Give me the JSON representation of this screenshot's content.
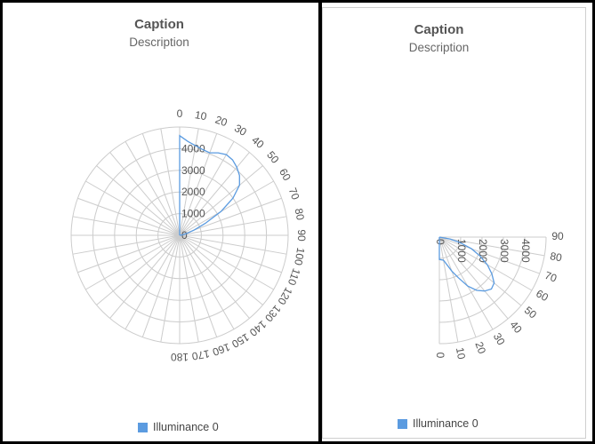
{
  "charts": [
    {
      "caption": "Caption",
      "description": "Description",
      "legend": "Illuminance 0"
    },
    {
      "caption": "Caption",
      "description": "Description",
      "legend": "Illuminance 0"
    }
  ],
  "colors": {
    "series": "#5b9be0",
    "grid": "#cccccc",
    "legend_swatch": "#5b9be0"
  },
  "chart_data": [
    {
      "type": "polar-line",
      "title": "Caption",
      "subtitle": "Description",
      "angle_ticks": [
        0,
        10,
        20,
        30,
        40,
        50,
        60,
        70,
        80,
        90,
        100,
        110,
        120,
        130,
        140,
        150,
        160,
        170,
        180
      ],
      "radial_ticks": [
        0,
        1000,
        2000,
        3000,
        4000
      ],
      "rlim": [
        0,
        5000
      ],
      "legend": "bottom",
      "series": [
        {
          "name": "Illuminance 0",
          "points": [
            [
              0,
              0
            ],
            [
              0,
              4600
            ],
            [
              5,
              4350
            ],
            [
              10,
              4200
            ],
            [
              15,
              4100
            ],
            [
              20,
              4050
            ],
            [
              25,
              4200
            ],
            [
              30,
              4300
            ],
            [
              35,
              4250
            ],
            [
              40,
              4100
            ],
            [
              45,
              3900
            ],
            [
              50,
              3600
            ],
            [
              55,
              3000
            ],
            [
              60,
              2200
            ],
            [
              65,
              1300
            ],
            [
              70,
              700
            ],
            [
              75,
              350
            ],
            [
              80,
              150
            ],
            [
              90,
              0
            ]
          ]
        }
      ]
    },
    {
      "type": "polar-line",
      "title": "Caption",
      "subtitle": "Description",
      "angle_ticks": [
        0,
        10,
        20,
        30,
        40,
        50,
        60,
        70,
        80,
        90
      ],
      "radial_ticks": [
        0,
        1000,
        2000,
        3000,
        4000
      ],
      "rlim": [
        0,
        5000
      ],
      "legend": "bottom",
      "series": [
        {
          "name": "Illuminance 0",
          "points": [
            [
              0,
              0
            ],
            [
              0,
              1050
            ],
            [
              10,
              1100
            ],
            [
              20,
              1700
            ],
            [
              25,
              2100
            ],
            [
              30,
              2650
            ],
            [
              35,
              3050
            ],
            [
              40,
              3300
            ],
            [
              45,
              3450
            ],
            [
              50,
              3350
            ],
            [
              55,
              3000
            ],
            [
              60,
              2600
            ],
            [
              65,
              2100
            ],
            [
              70,
              1600
            ],
            [
              75,
              1000
            ],
            [
              80,
              500
            ],
            [
              90,
              0
            ]
          ]
        }
      ]
    }
  ]
}
